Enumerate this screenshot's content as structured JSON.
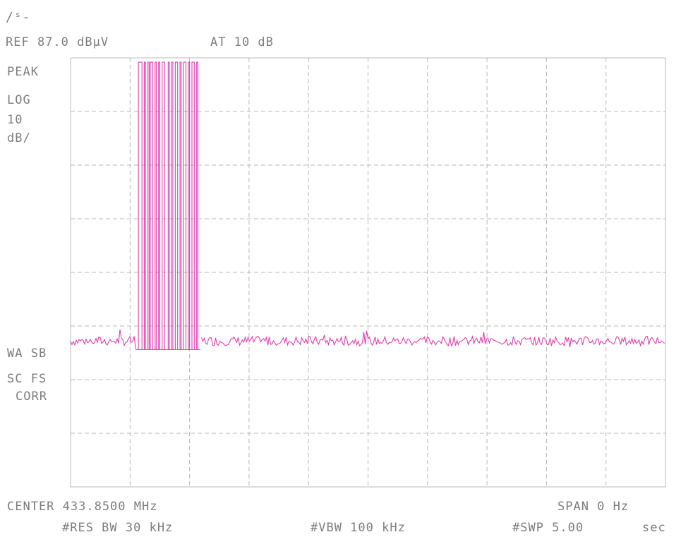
{
  "header": {
    "logo_text": "/ˢ‐",
    "ref_level": "REF 87.0 dBμV",
    "attenuation": "AT 10 dB"
  },
  "left_labels": {
    "mode": "PEAK",
    "scale": "LOG",
    "scale_value": "10",
    "scale_unit": "dB/",
    "wa_sb": "WA SB",
    "sc_fs": "SC FS",
    "corr": "CORR"
  },
  "footer": {
    "center": "CENTER 433.8500 MHz",
    "span": "SPAN 0 Hz",
    "res_bw": "#RES BW 30 kHz",
    "vbw": "#VBW 100 kHz",
    "sweep": "#SWP 5.00",
    "sweep_unit": "sec"
  },
  "colors": {
    "trace": "#e040b0",
    "grid": "#b8b8b8",
    "text": "#7d7d7d"
  },
  "chart_data": {
    "type": "line",
    "title": "",
    "xlabel": "",
    "ylabel": "",
    "x_unit": "sec",
    "xlim": [
      0,
      5.0
    ],
    "ylim": [
      -13,
      87
    ],
    "ref_level_dBuV": 87,
    "scale_dB_per_div": 10,
    "grid": true,
    "noise_floor_dBuV": 21,
    "pulse_top_dBuV": 86,
    "pulse_low_dBuV": 19,
    "pulse_burst": [
      [
        0.57,
        0.6
      ],
      [
        0.62,
        0.63
      ],
      [
        0.65,
        0.66
      ],
      [
        0.67,
        0.69
      ],
      [
        0.71,
        0.72
      ],
      [
        0.74,
        0.75
      ],
      [
        0.77,
        0.79
      ],
      [
        0.82,
        0.83
      ],
      [
        0.85,
        0.86
      ],
      [
        0.88,
        0.9
      ],
      [
        0.92,
        0.93
      ],
      [
        0.95,
        0.97
      ],
      [
        0.99,
        1.0
      ],
      [
        1.02,
        1.04
      ],
      [
        1.06,
        1.07
      ]
    ]
  }
}
